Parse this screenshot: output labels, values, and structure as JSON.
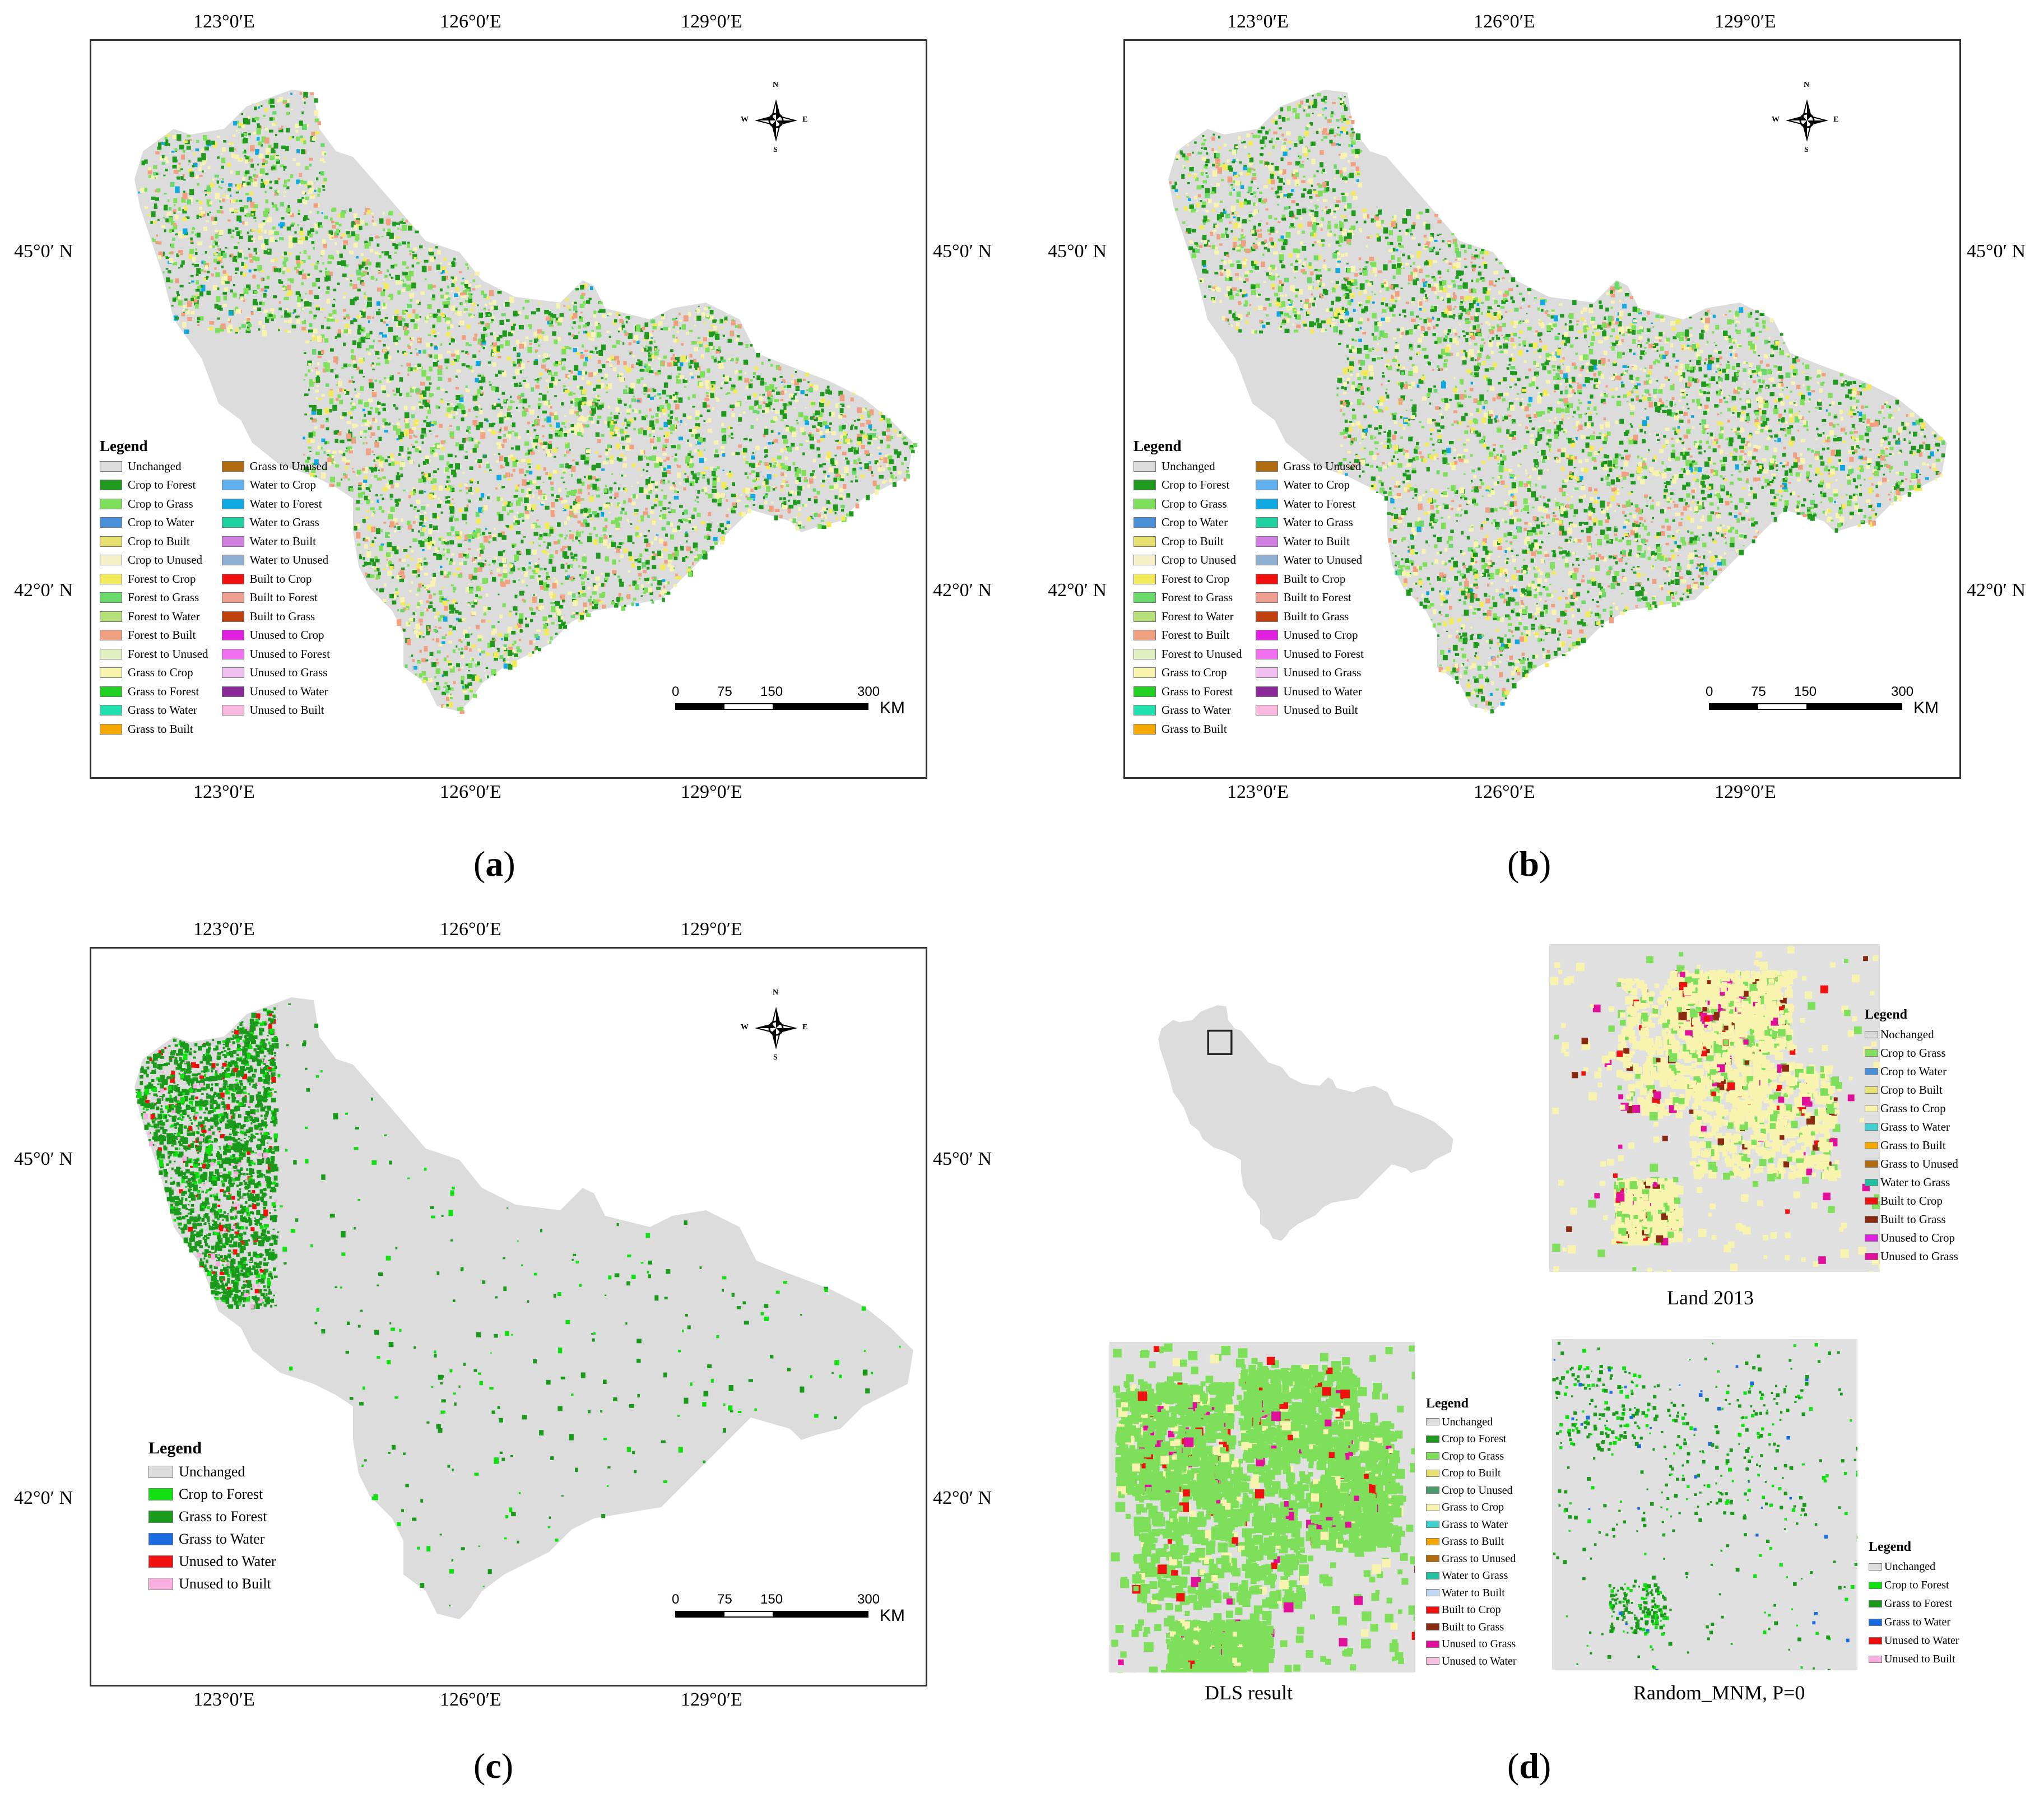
{
  "panels": {
    "a": {
      "letter": "a",
      "top_lon": [
        "123°0′E",
        "126°0′E",
        "129°0′E"
      ],
      "bottom_lon": [
        "123°0′E",
        "126°0′E",
        "129°0′E"
      ],
      "left_lat": [
        "45°0′ N",
        "42°0′ N"
      ],
      "right_lat": [
        "45°0′ N",
        "42°0′ N"
      ],
      "legend_title": "Legend",
      "legend_col1": [
        "Unchanged",
        "Crop to Forest",
        "Crop to Grass",
        "Crop to Water",
        "Crop to Built",
        "Crop to Unused",
        "Forest to Crop",
        "Forest to Grass",
        "Forest to Water",
        "Forest to Built",
        "Forest to Unused",
        "Grass to Crop",
        "Grass to Forest",
        "Grass to Water",
        "Grass to Built"
      ],
      "legend_col2": [
        "Grass to Unused",
        "Water to Crop",
        "Water to Forest",
        "Water to Grass",
        "Water to Built",
        "Water to Unused",
        "Built  to Crop",
        "Built  to Forest",
        "Built  to Grass",
        "Unused to Crop",
        "Unused to Forest",
        "Unused to Grass",
        "Unused to Water",
        "Unused to Built"
      ],
      "scale": [
        "0",
        "75",
        "150",
        "300",
        "KM"
      ]
    },
    "b": {
      "letter": "b",
      "top_lon": [
        "123°0′E",
        "126°0′E",
        "129°0′E"
      ],
      "bottom_lon": [
        "123°0′E",
        "126°0′E",
        "129°0′E"
      ],
      "left_lat": [
        "45°0′ N",
        "42°0′ N"
      ],
      "right_lat": [
        "45°0′ N",
        "42°0′ N"
      ],
      "legend_title": "Legend",
      "legend_col1": [
        "Unchanged",
        "Crop to Forest",
        "Crop to Grass",
        "Crop to Water",
        "Crop to Built",
        "Crop to Unused",
        "Forest to Crop",
        "Forest to Grass",
        "Forest to Water",
        "Forest to Built",
        "Forest to Unused",
        "Grass to Crop",
        "Grass to Forest",
        "Grass to Water",
        "Grass to Built"
      ],
      "legend_col2": [
        "Grass to Unused",
        "Water to Crop",
        "Water to Forest",
        "Water to Grass",
        "Water to Built",
        "Water to Unused",
        "Built  to Crop",
        "Built  to Forest",
        "Built  to Grass",
        "Unused to Crop",
        "Unused to Forest",
        "Unused to Grass",
        "Unused to Water",
        "Unused to Built"
      ],
      "scale": [
        "0",
        "75",
        "150",
        "300",
        "KM"
      ]
    },
    "c": {
      "letter": "c",
      "top_lon": [
        "123°0′E",
        "126°0′E",
        "129°0′E"
      ],
      "bottom_lon": [
        "123°0′E",
        "126°0′E",
        "129°0′E"
      ],
      "left_lat": [
        "45°0′ N",
        "42°0′ N"
      ],
      "right_lat": [
        "45°0′ N",
        "42°0′ N"
      ],
      "legend_title": "Legend",
      "legend_items": [
        "Unchanged",
        "Crop to Forest",
        "Grass to Forest",
        "Grass to Water",
        "Unused to Water",
        "Unused to Built"
      ],
      "scale": [
        "0",
        "75",
        "150",
        "300",
        "KM"
      ]
    },
    "d": {
      "letter": "d",
      "land_caption": "Land 2013",
      "dls_caption": "DLS result",
      "random_caption": "Random_MNM, P=0",
      "land_legend_title": "Legend",
      "land_legend": [
        "Nochanged",
        "Crop to Grass",
        "Crop to Water",
        "Crop to Built",
        "Grass to Crop",
        "Grass to Water",
        "Grass to Built",
        "Grass to Unused",
        "Water to Grass",
        "Built to Crop",
        "Built to Grass",
        "Unused to Crop",
        "Unused to Grass"
      ],
      "dls_legend_title": "Legend",
      "dls_legend": [
        "Unchanged",
        "Crop to Forest",
        "Crop to Grass",
        "Crop to Built",
        "Crop to Unused",
        "Grass to Crop",
        "Grass to Water",
        "Grass to Built",
        "Grass to Unused",
        "Water to Grass",
        "Water to Built",
        "Built to Crop",
        "Built to Grass",
        "Unused to Grass",
        "Unused to Water"
      ],
      "random_legend_title": "Legend",
      "random_legend": [
        "Unchanged",
        "Crop to Forest",
        "Grass to Forest",
        "Grass to Water",
        "Unused to Water",
        "Unused to Built"
      ]
    }
  },
  "compass": {
    "n": "N",
    "s": "S",
    "e": "E",
    "w": "W"
  },
  "colors": {
    "Unchanged": "#dcdcdc",
    "Nochanged": "#dcdcdc",
    "Crop to Forest": "#1f9a1f",
    "Crop to Grass": "#7ee05a",
    "Crop to Water": "#4a90d9",
    "Crop to Built": "#e8e070",
    "Crop to Unused": "#f5f0c8",
    "Forest to Crop": "#f2ea5a",
    "Forest to Grass": "#6ad86a",
    "Forest to Water": "#b8e07a",
    "Forest to Built": "#f0a080",
    "Forest to Unused": "#e0f0c0",
    "Grass to Crop": "#f8f4b0",
    "Grass to Forest": "#22d022",
    "Grass to Water": "#20e0b0",
    "Grass to Built": "#f5a800",
    "Grass to Unused": "#b06a10",
    "Water to Crop": "#60b0f0",
    "Water to Forest": "#10a8e0",
    "Water to Grass": "#20d0a0",
    "Water to Built": "#d080e0",
    "Water to Unused": "#8fb0d0",
    "Built  to Crop": "#f01010",
    "Built  to Forest": "#f0a090",
    "Built  to Grass": "#c04010",
    "Built to Crop": "#f01010",
    "Built to Grass": "#8a2a10",
    "Unused to Crop": "#e020e0",
    "Unused to Forest": "#f070f0",
    "Unused to Grass": "#f0c0f0",
    "Unused to Water": "#8a2a9a",
    "Unused to Built": "#f8b8e0",
    "c_Crop to Forest": "#10e010",
    "c_Grass to Forest": "#1a9a1a",
    "c_Grass to Water": "#1a6ae0",
    "c_Unused to Water": "#f01010",
    "c_Unused to Built": "#f8b0e0",
    "d_Unused to Grass": "#e0109a",
    "d_Unused to Water": "#f8c0e0",
    "d_Water to Built": "#c0d8f0",
    "d_Crop to Unused": "#4a9a6a",
    "d_Grass to Water": "#40d0d0",
    "d_Water to Grass": "#20c0a0"
  }
}
